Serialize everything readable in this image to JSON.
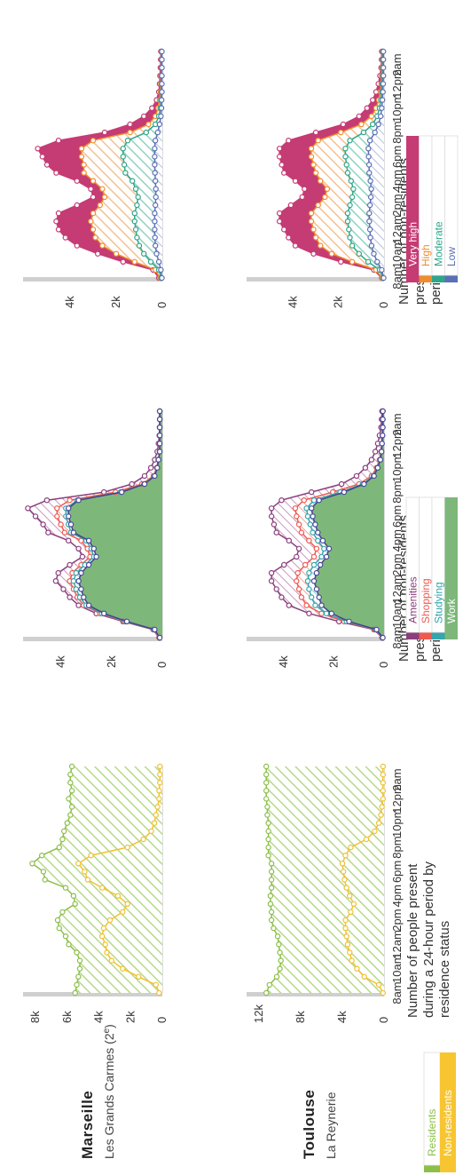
{
  "chart_data": {
    "type": "area",
    "x_tick_labels": [
      "8am",
      "10am",
      "12am",
      "2pm",
      "4pm",
      "6pm",
      "8pm",
      "10pm",
      "12pm",
      "2am"
    ],
    "cities": [
      {
        "name": "Marseille",
        "district": "Les Grands Carmes (2ᵉ)"
      },
      {
        "name": "Toulouse",
        "district": "La Reynerie"
      }
    ],
    "panels": [
      {
        "id": "residence",
        "title_lines": [
          "Number of people present",
          "during a 24-hour period by",
          "residence status"
        ],
        "legend": [
          {
            "label": "Residents",
            "color": "#8cbf4a"
          },
          {
            "label": "Non-residents",
            "color": "#f7c531"
          }
        ],
        "ylim": {
          "marseille": [
            0,
            8000
          ],
          "toulouse": [
            0,
            12000
          ]
        },
        "yticks": {
          "marseille": [
            [
              0,
              "0"
            ],
            [
              2000,
              "2k"
            ],
            [
              4000,
              "4k"
            ],
            [
              6000,
              "6k"
            ],
            [
              8000,
              "8k"
            ]
          ],
          "toulouse": [
            [
              0,
              "0"
            ],
            [
              4000,
              "4k"
            ],
            [
              8000,
              "8k"
            ],
            [
              12000,
              "12k"
            ]
          ]
        },
        "series": {
          "marseille": [
            {
              "name": "Residents",
              "values": [
                5500,
                5400,
                5300,
                5200,
                5200,
                5400,
                5900,
                6100,
                6500,
                6600,
                6300,
                5500,
                5600,
                6100,
                7400,
                7500,
                8200,
                7600,
                6500,
                6300,
                6200,
                6000,
                5800,
                5700,
                5900,
                5700,
                5800,
                5800,
                5700
              ]
            },
            {
              "name": "Non-residents",
              "values": [
                200,
                400,
                1500,
                2500,
                3200,
                3500,
                3600,
                3800,
                3700,
                3300,
                2500,
                2200,
                2800,
                3800,
                4700,
                4900,
                5300,
                4500,
                2200,
                1200,
                700,
                500,
                400,
                300,
                200,
                200,
                150,
                150,
                150
              ]
            }
          ],
          "toulouse": [
            {
              "name": "Residents",
              "values": [
                11300,
                11000,
                10300,
                10000,
                9900,
                10000,
                10100,
                10200,
                10600,
                10800,
                10800,
                10900,
                10900,
                10800,
                10800,
                10800,
                10800,
                11100,
                11100,
                11100,
                11100,
                11100,
                11200,
                11200,
                11300,
                11300,
                11300,
                11300,
                11300
              ]
            },
            {
              "name": "Non-residents",
              "values": [
                100,
                500,
                1900,
                2600,
                3100,
                3300,
                3500,
                3600,
                3700,
                3700,
                3200,
                2900,
                3300,
                3600,
                3800,
                3900,
                4000,
                3700,
                3200,
                1700,
                900,
                500,
                300,
                200,
                100,
                100,
                100,
                100,
                100
              ]
            }
          ]
        }
      },
      {
        "id": "activity",
        "title_lines": [
          "Number of non-residents",
          "present over a 24-hour",
          "period by type of activity"
        ],
        "legend": [
          {
            "label": "Amenities",
            "color": "#8a3f7c"
          },
          {
            "label": "Shopping",
            "color": "#ef5a50"
          },
          {
            "label": "Studying",
            "color": "#36a5ad"
          },
          {
            "label": "Work",
            "color": "#7db87a"
          }
        ],
        "ylim": [
          0,
          5000
        ],
        "yticks": [
          [
            0,
            "0"
          ],
          [
            2000,
            "2k"
          ],
          [
            4000,
            "4k"
          ]
        ],
        "series": {
          "marseille": [
            {
              "name": "Work",
              "values": [
                100,
                300,
                1400,
                2300,
                2900,
                3100,
                3200,
                3300,
                3200,
                2900,
                2600,
                2700,
                2900,
                3500,
                3600,
                3700,
                3700,
                3300,
                1600,
                700,
                300,
                200,
                150,
                100,
                100,
                100,
                100,
                100,
                100
              ]
            },
            {
              "name": "Studying",
              "values": [
                110,
                320,
                1450,
                2380,
                3000,
                3250,
                3400,
                3500,
                3400,
                3050,
                2700,
                2800,
                3000,
                3600,
                3700,
                3800,
                3800,
                3350,
                1650,
                720,
                310,
                205,
                155,
                105,
                100,
                100,
                100,
                100,
                100
              ]
            },
            {
              "name": "Shopping",
              "values": [
                120,
                340,
                1500,
                2450,
                3100,
                3350,
                3500,
                3650,
                3550,
                3200,
                2850,
                2950,
                3200,
                3850,
                4000,
                4150,
                4150,
                3650,
                1850,
                800,
                350,
                220,
                160,
                110,
                105,
                100,
                100,
                100,
                100
              ]
            },
            {
              "name": "Amenities",
              "values": [
                130,
                360,
                1550,
                2600,
                3300,
                3650,
                3900,
                4200,
                4100,
                3650,
                3150,
                3300,
                3700,
                4500,
                4700,
                5000,
                5300,
                4550,
                2300,
                1200,
                700,
                450,
                300,
                200,
                150,
                120,
                110,
                100,
                100
              ]
            }
          ],
          "toulouse": [
            {
              "name": "Work",
              "values": [
                50,
                300,
                1400,
                2100,
                2500,
                2600,
                2700,
                2800,
                2700,
                2550,
                2300,
                2200,
                2450,
                2650,
                2750,
                2850,
                2900,
                2600,
                1600,
                800,
                400,
                250,
                150,
                100,
                80,
                60,
                50,
                50,
                50
              ]
            },
            {
              "name": "Studying",
              "values": [
                60,
                330,
                1500,
                2300,
                2750,
                2900,
                3000,
                3050,
                3000,
                2800,
                2500,
                2400,
                2650,
                2850,
                2950,
                3050,
                3100,
                2800,
                1750,
                850,
                430,
                270,
                160,
                110,
                85,
                65,
                55,
                50,
                50
              ]
            },
            {
              "name": "Shopping",
              "values": [
                70,
                360,
                1600,
                2500,
                3100,
                3300,
                3400,
                3500,
                3450,
                3150,
                2800,
                2700,
                3000,
                3300,
                3400,
                3500,
                3550,
                3200,
                2050,
                1000,
                500,
                300,
                180,
                120,
                90,
                70,
                60,
                55,
                50
              ]
            },
            {
              "name": "Amenities",
              "values": [
                80,
                400,
                1800,
                3000,
                3800,
                4100,
                4300,
                4500,
                4500,
                4000,
                3500,
                3400,
                3800,
                4300,
                4400,
                4500,
                4500,
                4100,
                2900,
                1700,
                1100,
                750,
                500,
                350,
                250,
                180,
                120,
                100,
                80
              ]
            }
          ]
        }
      },
      {
        "id": "education",
        "title_lines": [
          "Number of non-residents",
          "present over a 24-hour",
          "period by level of education"
        ],
        "legend": [
          {
            "label": "Very high",
            "color": "#c53b74"
          },
          {
            "label": "High",
            "color": "#f08c2e"
          },
          {
            "label": "Moderate",
            "color": "#2fa68a"
          },
          {
            "label": "Low",
            "color": "#5b6fb5"
          }
        ],
        "ylim": [
          0,
          5500
        ],
        "yticks": [
          [
            0,
            "0"
          ],
          [
            2000,
            "2k"
          ],
          [
            4000,
            "4k"
          ]
        ],
        "series": {
          "marseille": [
            {
              "name": "Low",
              "values": [
                20,
                60,
                150,
                250,
                300,
                320,
                330,
                330,
                330,
                300,
                280,
                280,
                300,
                320,
                330,
                330,
                330,
                300,
                200,
                120,
                60,
                40,
                30,
                20,
                20,
                20,
                20,
                20,
                20
              ]
            },
            {
              "name": "Moderate",
              "values": [
                50,
                150,
                500,
                800,
                1000,
                1100,
                1150,
                1200,
                1200,
                1100,
                1050,
                1150,
                1300,
                1600,
                1650,
                1700,
                1700,
                1500,
                700,
                300,
                150,
                90,
                60,
                40,
                30,
                30,
                25,
                25,
                25
              ]
            },
            {
              "name": "High",
              "values": [
                100,
                300,
                1200,
                2000,
                2600,
                2900,
                3000,
                3100,
                3000,
                2700,
                2500,
                2600,
                3000,
                3400,
                3400,
                3500,
                3500,
                3000,
                1400,
                600,
                300,
                180,
                120,
                80,
                60,
                50,
                40,
                40,
                40
              ]
            },
            {
              "name": "Very high",
              "values": [
                150,
                400,
                1700,
                2800,
                3700,
                4200,
                4500,
                4600,
                4500,
                3700,
                3000,
                3100,
                3700,
                4600,
                5000,
                5200,
                5400,
                4500,
                2500,
                1400,
                800,
                450,
                250,
                150,
                120,
                100,
                80,
                70,
                60
              ]
            }
          ],
          "toulouse": [
            {
              "name": "Low",
              "values": [
                20,
                100,
                300,
                450,
                550,
                600,
                620,
                650,
                650,
                620,
                580,
                560,
                600,
                650,
                660,
                680,
                690,
                620,
                400,
                250,
                150,
                100,
                70,
                50,
                40,
                30,
                30,
                30,
                30
              ]
            },
            {
              "name": "Moderate",
              "values": [
                40,
                200,
                700,
                1100,
                1400,
                1500,
                1550,
                1600,
                1600,
                1500,
                1400,
                1350,
                1450,
                1600,
                1650,
                1700,
                1700,
                1500,
                900,
                500,
                300,
                200,
                140,
                100,
                80,
                60,
                50,
                50,
                50
              ]
            },
            {
              "name": "High",
              "values": [
                80,
                350,
                1400,
                2300,
                2800,
                3000,
                3100,
                3200,
                3200,
                2900,
                2600,
                2500,
                2800,
                3000,
                3100,
                3200,
                3200,
                2900,
                1900,
                1000,
                550,
                350,
                230,
                160,
                120,
                100,
                80,
                70,
                70
              ]
            },
            {
              "name": "Very high",
              "values": [
                100,
                450,
                1900,
                3100,
                3900,
                4200,
                4400,
                4600,
                4600,
                4100,
                3600,
                3500,
                3900,
                4400,
                4500,
                4600,
                4600,
                4200,
                3000,
                1800,
                1100,
                750,
                500,
                350,
                250,
                180,
                130,
                110,
                100
              ]
            }
          ]
        }
      }
    ]
  }
}
